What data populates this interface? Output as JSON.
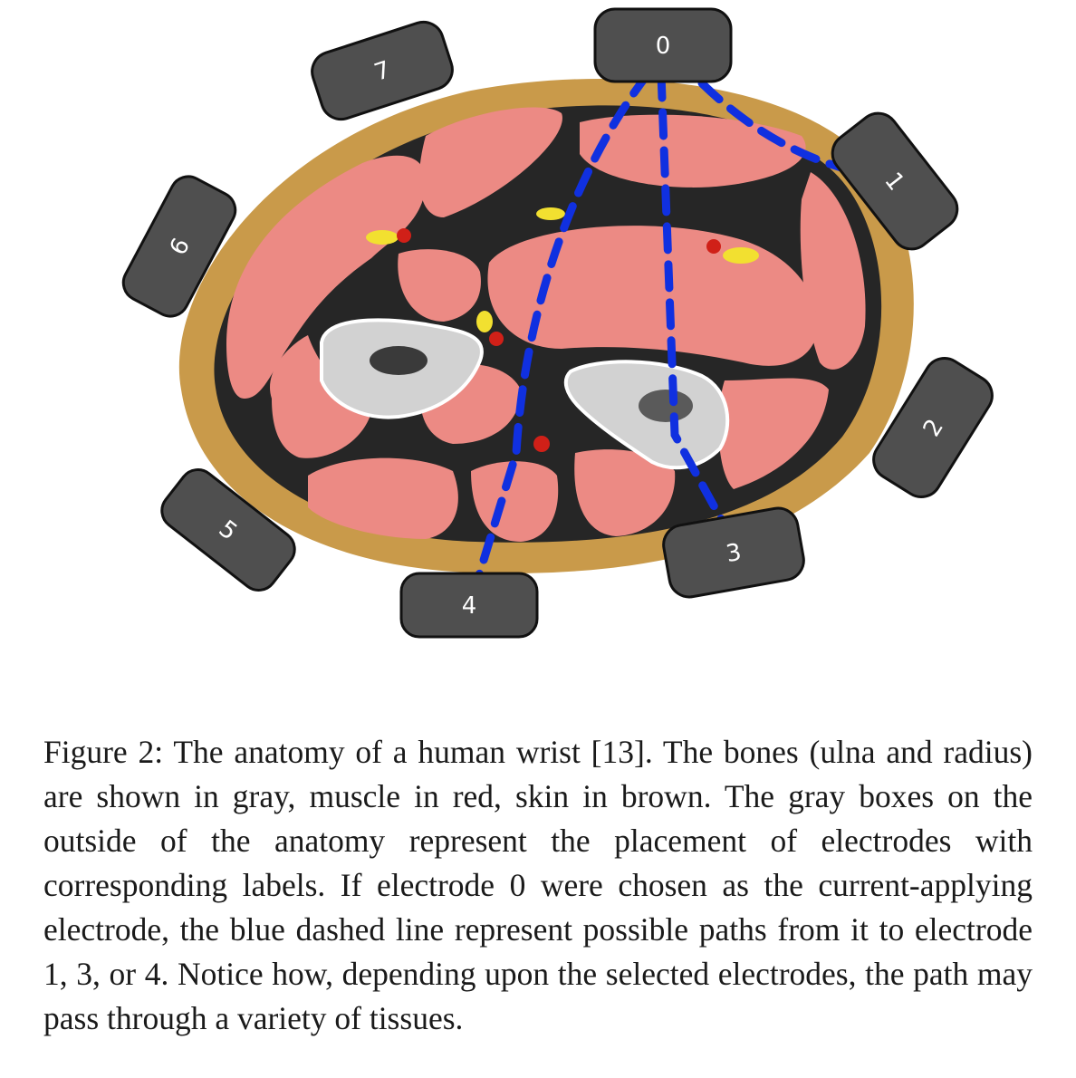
{
  "figure": {
    "colors": {
      "skin": "#c99a4a",
      "muscle": "#ec8a84",
      "bone": "#d2d2d2",
      "connective": "#262626",
      "nerve": "#f2e030",
      "artery": "#d02018",
      "electrode": "#4f4f4f",
      "path": "#1030e0"
    },
    "electrodes": [
      {
        "label": "0"
      },
      {
        "label": "1"
      },
      {
        "label": "2"
      },
      {
        "label": "3"
      },
      {
        "label": "4"
      },
      {
        "label": "5"
      },
      {
        "label": "6"
      },
      {
        "label": "7"
      }
    ]
  },
  "caption": {
    "text": "Figure 2: The anatomy of a human wrist [13]. The bones (ulna and radius) are shown in gray, muscle in red, skin in brown. The gray boxes on the outside of the anatomy represent the placement of electrodes with corresponding labels. If electrode 0 were chosen as the current-applying electrode, the blue dashed line represent possible paths from it to electrode 1, 3, or 4. Notice how, depending upon the selected electrodes, the path may pass through a variety of tissues."
  }
}
